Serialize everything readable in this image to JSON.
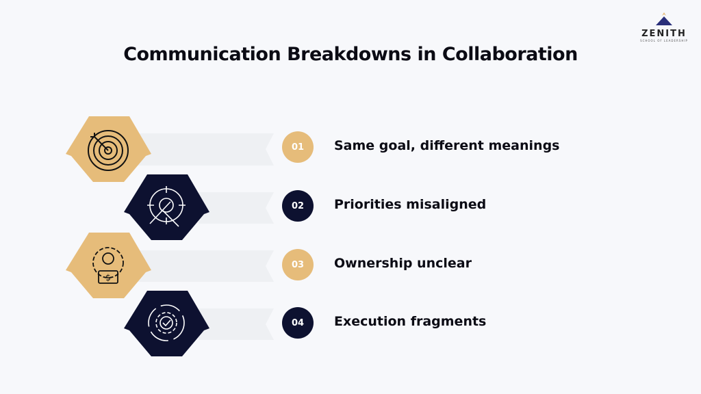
{
  "title": "Communication Breakdowns in Collaboration",
  "logo": {
    "name": "ZENITH",
    "tagline": "SCHOOL OF LEADERSHIP"
  },
  "colors": {
    "gold": "#E6BC7A",
    "navy": "#0D1130",
    "band": "#EEF0F3",
    "background": "#F7F8FB"
  },
  "items": [
    {
      "number": "01",
      "label": "Same goal, different meanings",
      "icon": "target-icon",
      "style": "gold"
    },
    {
      "number": "02",
      "label": "Priorities misaligned",
      "icon": "crosshair-tools-icon",
      "style": "navy"
    },
    {
      "number": "03",
      "label": "Ownership unclear",
      "icon": "gear-person-money-icon",
      "style": "gold"
    },
    {
      "number": "04",
      "label": "Execution fragments",
      "icon": "gear-check-cycle-icon",
      "style": "navy"
    }
  ]
}
